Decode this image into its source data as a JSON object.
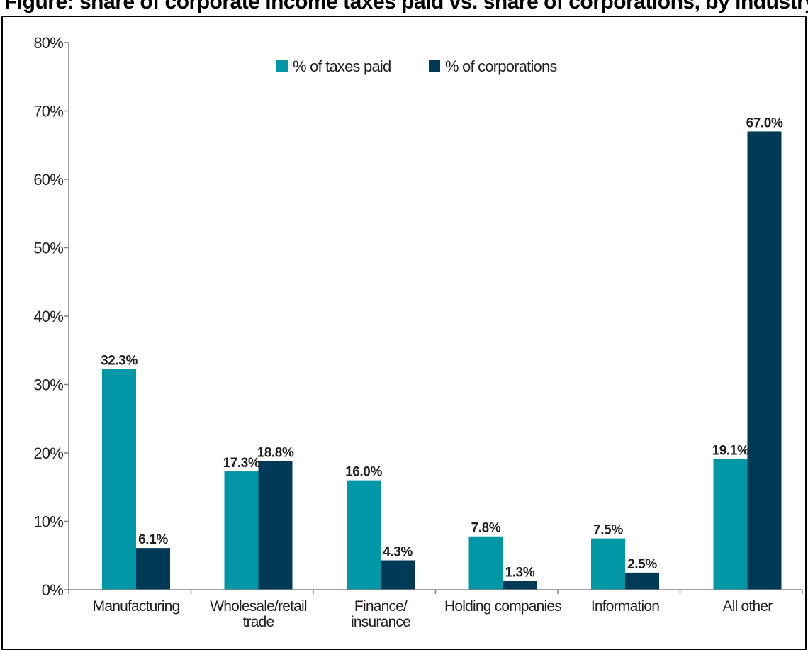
{
  "header_strip": {
    "text": "Figure: share of corporate income taxes paid vs. share of corporations, by industry"
  },
  "colors": {
    "taxes_paid": "#0097a7",
    "corporations": "#003a57",
    "axis": "#808080",
    "text": "#231f20"
  },
  "chart_data": {
    "type": "bar",
    "title": "",
    "xlabel": "",
    "ylabel": "",
    "ylim": [
      0,
      80
    ],
    "yticks": [
      0,
      10,
      20,
      30,
      40,
      50,
      60,
      70,
      80
    ],
    "ytick_labels": [
      "0%",
      "10%",
      "20%",
      "30%",
      "40%",
      "50%",
      "60%",
      "70%",
      "80%"
    ],
    "grid": false,
    "legend_position": "top-center",
    "categories": [
      [
        "Manufacturing"
      ],
      [
        "Wholesale/retail",
        "trade"
      ],
      [
        "Finance/",
        "insurance"
      ],
      [
        "Holding companies"
      ],
      [
        "Information"
      ],
      [
        "All other"
      ]
    ],
    "series": [
      {
        "name": "% of taxes paid",
        "color": "#0097a7",
        "values": [
          32.3,
          17.3,
          16.0,
          7.8,
          7.5,
          19.1
        ],
        "labels": [
          "32.3%",
          "17.3%",
          "16.0%",
          "7.8%",
          "7.5%",
          "19.1%"
        ]
      },
      {
        "name": "% of corporations",
        "color": "#003a57",
        "values": [
          6.1,
          18.8,
          4.3,
          1.3,
          2.5,
          67.0
        ],
        "labels": [
          "6.1%",
          "18.8%",
          "4.3%",
          "1.3%",
          "2.5%",
          "67.0%"
        ]
      }
    ]
  }
}
